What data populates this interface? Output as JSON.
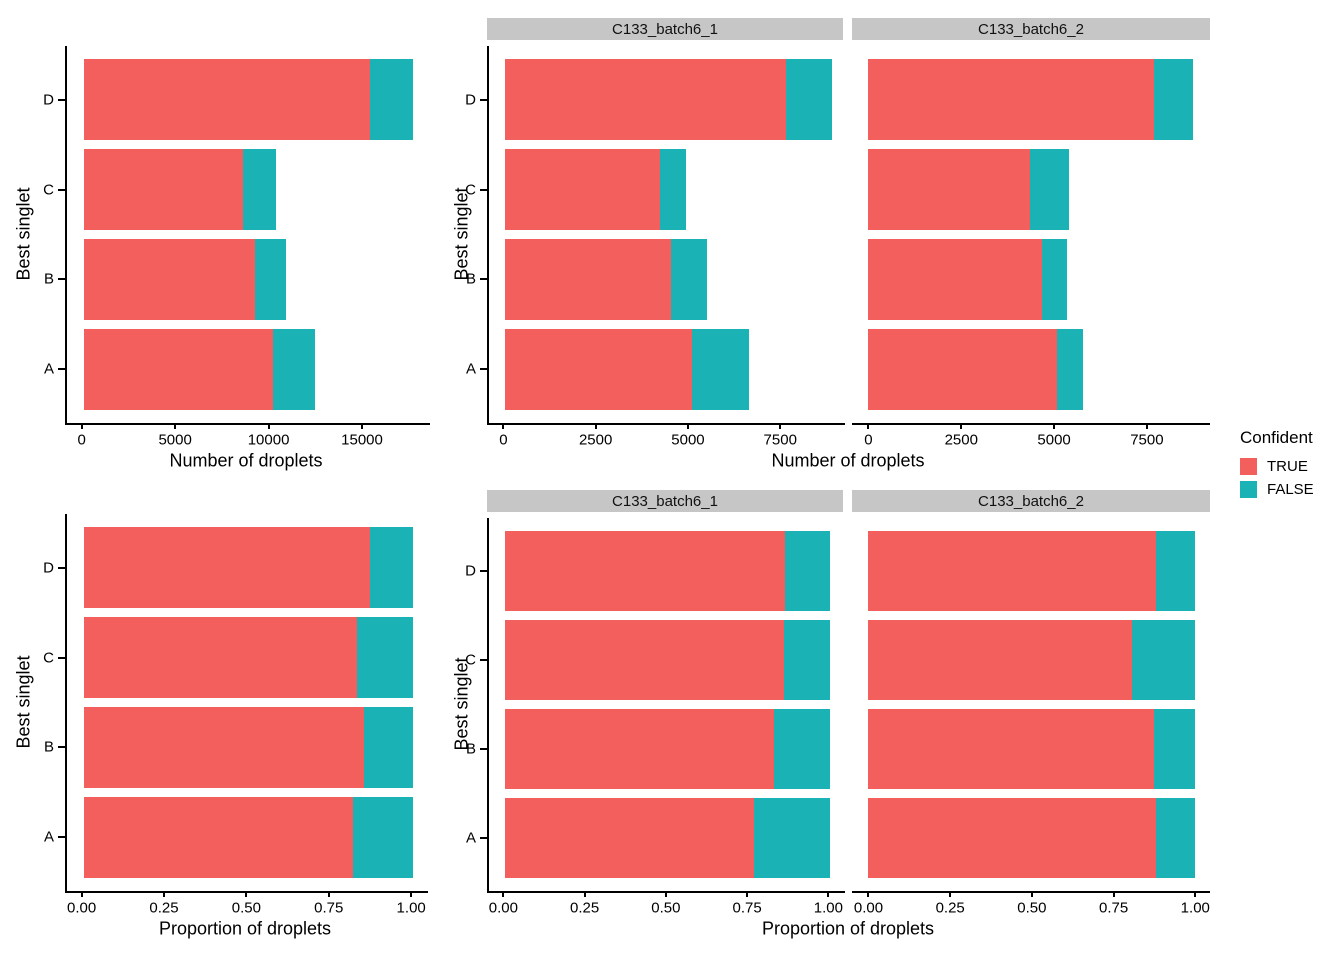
{
  "colors": {
    "TRUE": "#F25F5C",
    "FALSE": "#1AB2B5",
    "strip_bg": "#C6C6C6",
    "axis": "#000000"
  },
  "legend": {
    "title": "Confident",
    "items": [
      {
        "label": "TRUE",
        "fill": "#F25F5C"
      },
      {
        "label": "FALSE",
        "fill": "#1AB2B5"
      }
    ]
  },
  "chart_data": [
    {
      "id": "counts-combined",
      "type": "bar",
      "orientation": "horizontal",
      "stacked": true,
      "grid": false,
      "xlabel": "Number of droplets",
      "ylabel": "Best singlet",
      "categories": [
        "D",
        "C",
        "B",
        "A"
      ],
      "x_ticks": [
        0,
        5000,
        10000,
        15000
      ],
      "x_tick_labels": [
        "0",
        "5000",
        "10000",
        "15000"
      ],
      "x_display_max": 18530,
      "panels": [
        {
          "strip": null,
          "series": [
            {
              "name": "TRUE",
              "values": [
                15300,
                8550,
                9180,
                10130
              ]
            },
            {
              "name": "FALSE",
              "values": [
                2300,
                1750,
                1620,
                2250
              ]
            }
          ]
        }
      ]
    },
    {
      "id": "counts-by-sample",
      "type": "bar",
      "orientation": "horizontal",
      "stacked": true,
      "grid": false,
      "xlabel": "Number of droplets",
      "ylabel": "Best singlet",
      "categories": [
        "D",
        "C",
        "B",
        "A"
      ],
      "x_ticks": [
        0,
        2500,
        5000,
        7500
      ],
      "x_tick_labels": [
        "0",
        "2500",
        "5000",
        "7500"
      ],
      "x_display_max": 9200,
      "panels": [
        {
          "strip": "C133_batch6_1",
          "series": [
            {
              "name": "TRUE",
              "values": [
                7600,
                4200,
                4500,
                5050
              ]
            },
            {
              "name": "FALSE",
              "values": [
                1250,
                700,
                950,
                1550
              ]
            }
          ]
        },
        {
          "strip": "C133_batch6_2",
          "series": [
            {
              "name": "TRUE",
              "values": [
                7700,
                4350,
                4680,
                5080
              ]
            },
            {
              "name": "FALSE",
              "values": [
                1050,
                1050,
                670,
                700
              ]
            }
          ]
        }
      ]
    },
    {
      "id": "proportions-combined",
      "type": "bar",
      "orientation": "horizontal",
      "stacked": true,
      "grid": false,
      "xlabel": "Proportion of droplets",
      "ylabel": "Best singlet",
      "categories": [
        "D",
        "C",
        "B",
        "A"
      ],
      "x_ticks": [
        0,
        0.25,
        0.5,
        0.75,
        1
      ],
      "x_tick_labels": [
        "0.00",
        "0.25",
        "0.50",
        "0.75",
        "1.00"
      ],
      "x_display_max": 1.045,
      "panels": [
        {
          "strip": null,
          "series": [
            {
              "name": "TRUE",
              "values": [
                0.869,
                0.83,
                0.85,
                0.818
              ]
            },
            {
              "name": "FALSE",
              "values": [
                0.131,
                0.17,
                0.15,
                0.182
              ]
            }
          ]
        }
      ]
    },
    {
      "id": "proportions-by-sample",
      "type": "bar",
      "orientation": "horizontal",
      "stacked": true,
      "grid": false,
      "xlabel": "Proportion of droplets",
      "ylabel": "Best singlet",
      "categories": [
        "D",
        "C",
        "B",
        "A"
      ],
      "x_ticks": [
        0,
        0.25,
        0.5,
        0.75,
        1
      ],
      "x_tick_labels": [
        "0.00",
        "0.25",
        "0.50",
        "0.75",
        "1.00"
      ],
      "x_display_max": 1.045,
      "panels": [
        {
          "strip": "C133_batch6_1",
          "series": [
            {
              "name": "TRUE",
              "values": [
                0.859,
                0.857,
                0.826,
                0.765
              ]
            },
            {
              "name": "FALSE",
              "values": [
                0.141,
                0.143,
                0.174,
                0.235
              ]
            }
          ]
        },
        {
          "strip": "C133_batch6_2",
          "series": [
            {
              "name": "TRUE",
              "values": [
                0.88,
                0.806,
                0.875,
                0.879
              ]
            },
            {
              "name": "FALSE",
              "values": [
                0.12,
                0.194,
                0.125,
                0.121
              ]
            }
          ]
        }
      ]
    }
  ]
}
